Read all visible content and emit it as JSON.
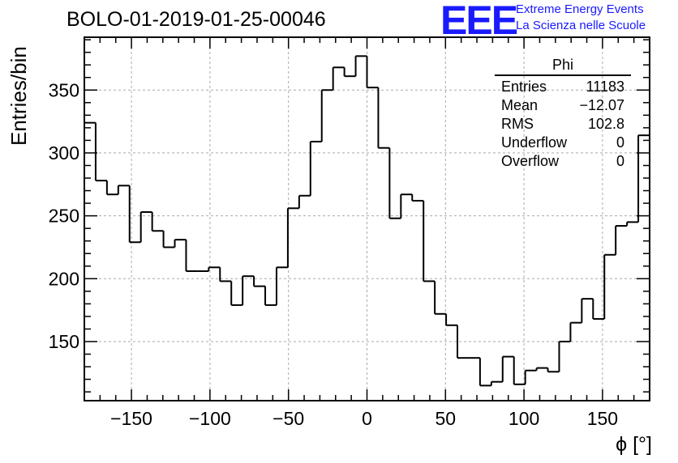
{
  "title": "BOLO-01-2019-01-25-00046",
  "logo": {
    "letters": "EEE",
    "line1": "Extreme Energy Events",
    "line2": "La Scienza nelle Scuole"
  },
  "stats": {
    "name": "Phi",
    "rows": [
      {
        "label": "Entries",
        "value": "11183"
      },
      {
        "label": "Mean",
        "value": "−12.07"
      },
      {
        "label": "RMS",
        "value": "102.8"
      },
      {
        "label": "Underflow",
        "value": "0"
      },
      {
        "label": "Overflow",
        "value": "0"
      }
    ]
  },
  "chart_data": {
    "type": "bar",
    "style": "step-histogram",
    "title": "BOLO-01-2019-01-25-00046",
    "xlabel": "ϕ [°]",
    "ylabel": "Entries/bin",
    "xlim": [
      -180,
      180
    ],
    "ylim": [
      103,
      392
    ],
    "bin_width": 7.2,
    "x_ticks": [
      -150,
      -100,
      -50,
      0,
      50,
      100,
      150
    ],
    "x_tick_labels": [
      "−150",
      "−100",
      "−50",
      "0",
      "50",
      "100",
      "150"
    ],
    "y_ticks": [
      150,
      200,
      250,
      300,
      350
    ],
    "y_tick_labels": [
      "150",
      "200",
      "250",
      "300",
      "350"
    ],
    "grid": true,
    "values": [
      324,
      278,
      267,
      274,
      229,
      253,
      238,
      225,
      231,
      206,
      206,
      209,
      198,
      179,
      202,
      194,
      179,
      209,
      256,
      266,
      309,
      350,
      368,
      361,
      377,
      352,
      304,
      248,
      267,
      262,
      198,
      172,
      163,
      137,
      137,
      115,
      118,
      138,
      116,
      127,
      129,
      126,
      150,
      165,
      184,
      168,
      219,
      242,
      245,
      314
    ]
  },
  "colors": {
    "line": "#000000",
    "grid": "#aaaaaa",
    "logo": "#1a1aff"
  }
}
